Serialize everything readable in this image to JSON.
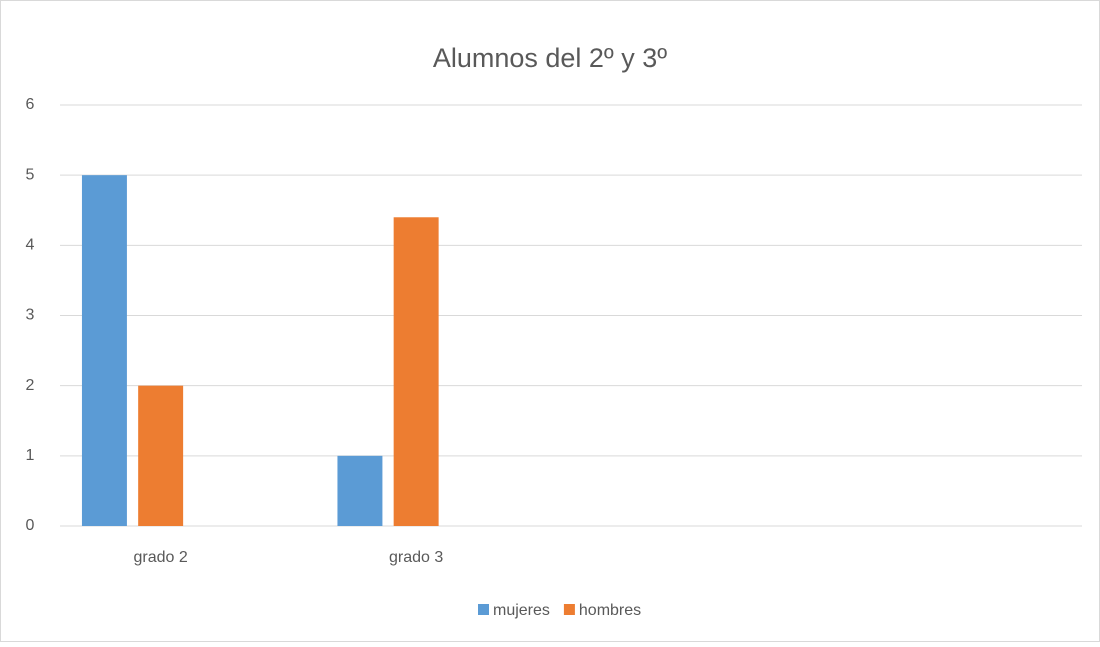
{
  "chart_data": {
    "type": "bar",
    "title": "Alumnos del 2º y 3º",
    "categories": [
      "grado 2",
      "grado 3",
      null,
      null
    ],
    "series": [
      {
        "name": "mujeres",
        "color": "#5b9bd5",
        "values": [
          5,
          1,
          null,
          null
        ]
      },
      {
        "name": "hombres",
        "color": "#ed7d31",
        "values": [
          2,
          4.4,
          null,
          null
        ]
      }
    ],
    "ylim": [
      0,
      6
    ],
    "yticks": [
      0,
      1,
      2,
      3,
      4,
      5,
      6
    ],
    "grid": true,
    "legend": "bottom"
  }
}
